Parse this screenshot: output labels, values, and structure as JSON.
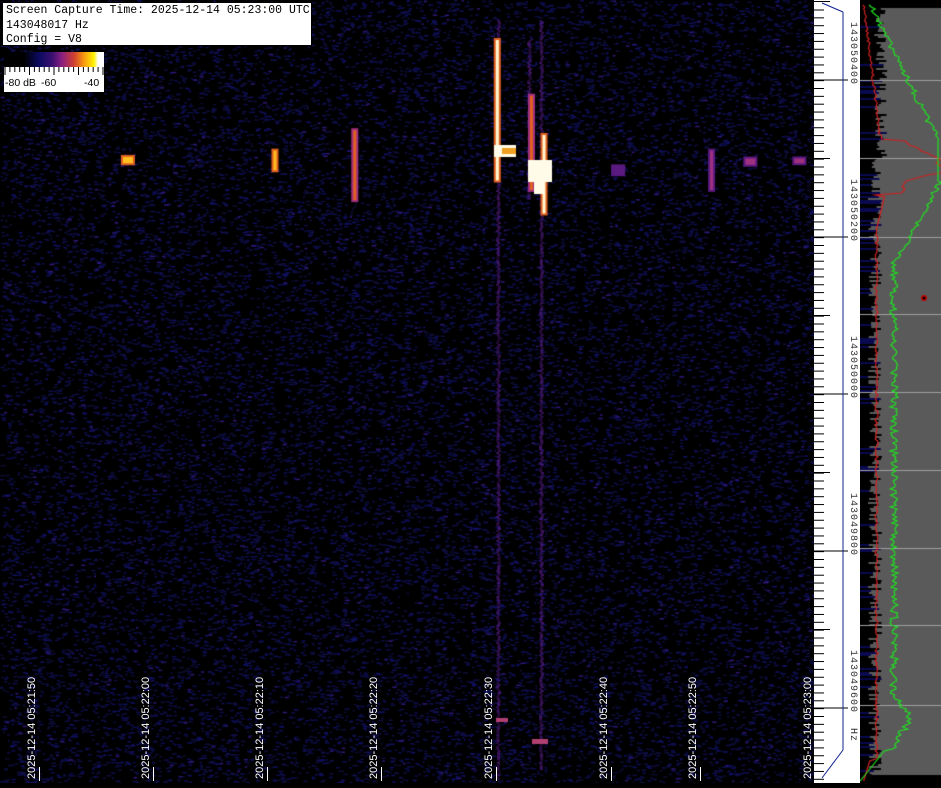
{
  "info": {
    "capture_time": "Screen Capture Time: 2025-12-14 05:23:00 UTC",
    "frequency": "143048017 Hz",
    "config": "Config = V8"
  },
  "colorbar": {
    "labels": [
      "-80 dB",
      "-60",
      "-40"
    ],
    "colors": [
      "#000000",
      "#0a0a60",
      "#8a2080",
      "#f89a10",
      "#fff200",
      "#ffffff"
    ]
  },
  "chart_data": {
    "type": "heatmap",
    "subtype": "spectrogram waterfall",
    "x_axis": {
      "ticks": [
        "2025-12-14 05:21:50",
        "2025-12-14 05:22:00",
        "2025-12-14 05:22:10",
        "2025-12-14 05:22:20",
        "2025-12-14 05:22:30",
        "2025-12-14 05:22:40",
        "2025-12-14 05:22:50",
        "2025-12-14 05:23:00"
      ]
    },
    "y_axis": {
      "ticks": [
        "143050400",
        "143050200",
        "143050000",
        "143049800",
        "143049600"
      ],
      "unit": "Hz",
      "range_hz": [
        143049500,
        143050500
      ]
    },
    "color_scale_db": [
      -80,
      -40
    ],
    "signals": [
      {
        "t": 7.8,
        "f_top": 143050302,
        "f_bottom": 143050294,
        "level": 0.85
      },
      {
        "t": 20.7,
        "f_top": 143050310,
        "f_bottom": 143050285,
        "level": 0.75
      },
      {
        "t": 27.7,
        "f_top": 143050336,
        "f_bottom": 143050247,
        "level": 0.7
      },
      {
        "t": 40.2,
        "f_top": 143050451,
        "f_bottom": 143050272,
        "level": 1.0
      },
      {
        "t": 43.2,
        "f_top": 143050380,
        "f_bottom": 143050260,
        "level": 0.55
      },
      {
        "t": 44.3,
        "f_top": 143050330,
        "f_bottom": 143050230,
        "level": 1.0
      },
      {
        "t": 50.8,
        "f_top": 143050290,
        "f_bottom": 143050280,
        "level": 0.35
      },
      {
        "t": 59.0,
        "f_top": 143050310,
        "f_bottom": 143050260,
        "level": 0.5
      },
      {
        "t": 62.4,
        "f_top": 143050300,
        "f_bottom": 143050292,
        "level": 0.45
      },
      {
        "t": 66.7,
        "f_top": 143050300,
        "f_bottom": 143050294,
        "level": 0.45
      }
    ]
  },
  "spectrum_panel": {
    "colors": {
      "background": "#5a5a5a",
      "average": "#d02020",
      "peak": "#20e020",
      "bars": "#000000",
      "grid": "#a0a0a0"
    }
  }
}
